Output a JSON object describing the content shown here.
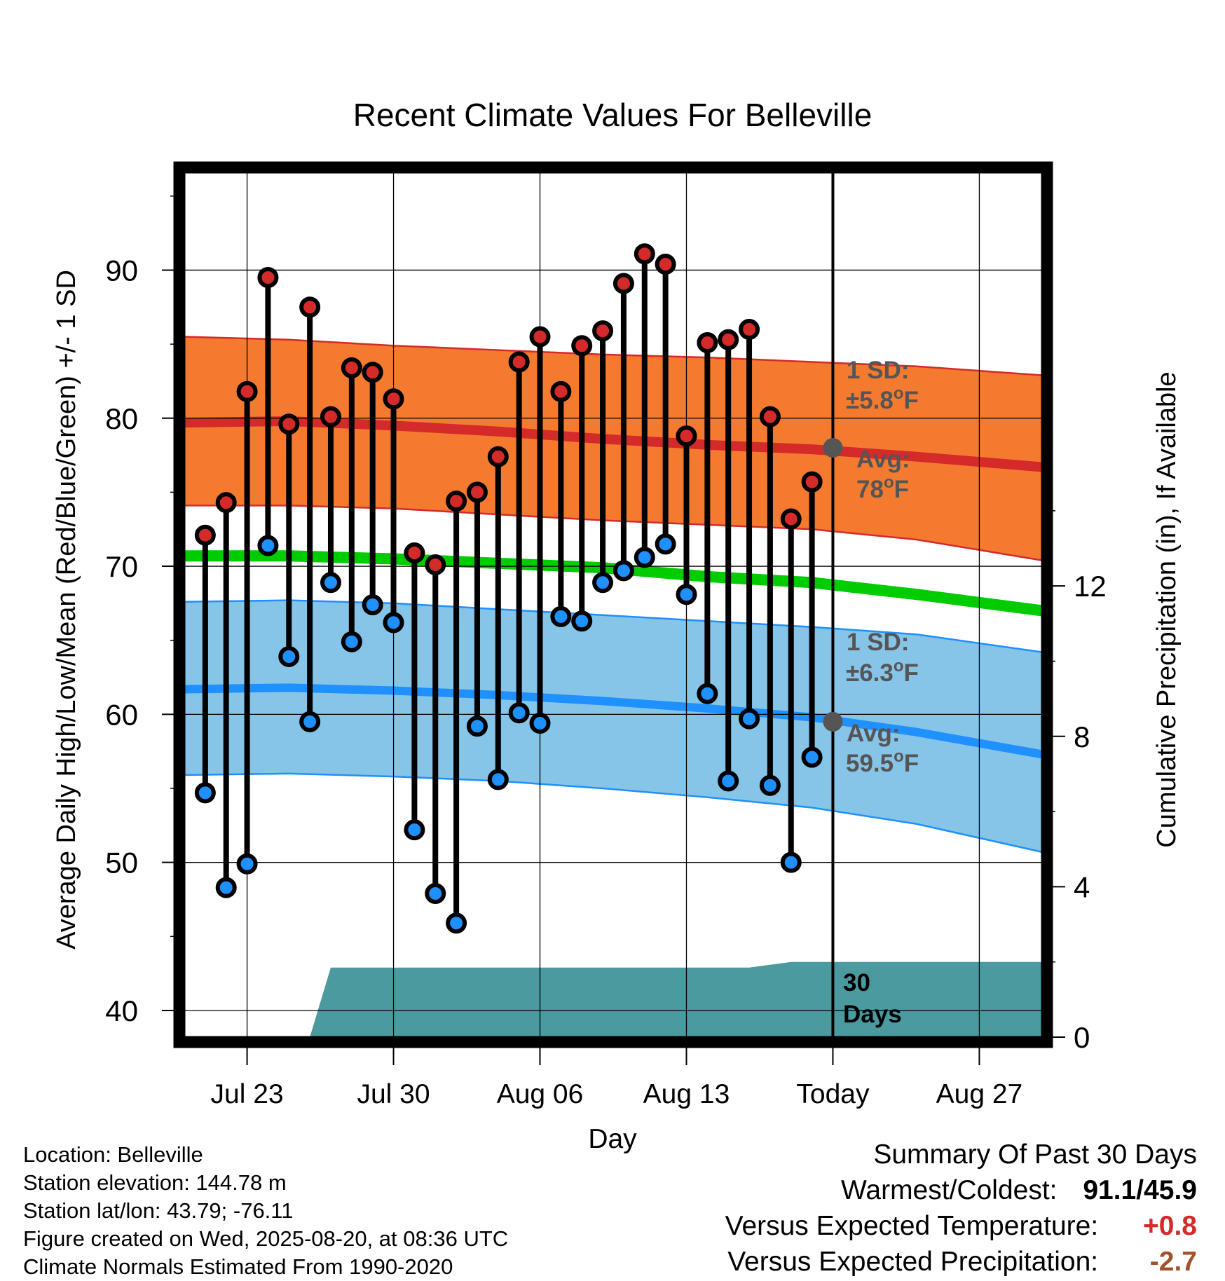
{
  "chart_data": {
    "type": "line",
    "title": "Recent Climate Values For Belleville",
    "xlabel": "Day",
    "ylabel_left": "Average Daily High/Low/Mean (Red/Blue/Green) +/- 1 SD",
    "ylabel_right": "Cumulative Precipitation (in), If Available",
    "x_ticks": [
      "Jul 23",
      "Jul 30",
      "Aug 06",
      "Aug 13",
      "Today",
      "Aug 27"
    ],
    "y_ticks_left": [
      "40",
      "50",
      "60",
      "70",
      "80",
      "90"
    ],
    "y_ticks_right": [
      "0",
      "4",
      "8",
      "12"
    ],
    "ylim_left": [
      38.2,
      96.6
    ],
    "ylim_right": [
      0,
      23
    ],
    "xlim": [
      "2025-07-20",
      "2025-08-30"
    ],
    "grid": true,
    "today_label": "30\nDays",
    "daily": {
      "dates": [
        "2025-07-21",
        "2025-07-22",
        "2025-07-23",
        "2025-07-24",
        "2025-07-25",
        "2025-07-26",
        "2025-07-27",
        "2025-07-28",
        "2025-07-29",
        "2025-07-30",
        "2025-07-31",
        "2025-08-01",
        "2025-08-02",
        "2025-08-03",
        "2025-08-04",
        "2025-08-05",
        "2025-08-06",
        "2025-08-07",
        "2025-08-08",
        "2025-08-09",
        "2025-08-10",
        "2025-08-11",
        "2025-08-12",
        "2025-08-13",
        "2025-08-14",
        "2025-08-15",
        "2025-08-16",
        "2025-08-17",
        "2025-08-18",
        "2025-08-19"
      ],
      "high": [
        72.1,
        74.3,
        81.8,
        89.5,
        79.6,
        87.5,
        80.1,
        83.4,
        83.1,
        81.3,
        70.9,
        70.1,
        74.4,
        75.0,
        77.4,
        83.8,
        85.5,
        81.8,
        84.9,
        85.9,
        89.1,
        91.1,
        90.4,
        78.8,
        85.1,
        85.3,
        86.0,
        80.1,
        73.2,
        75.7
      ],
      "low": [
        54.7,
        48.3,
        49.9,
        71.4,
        63.9,
        59.5,
        68.9,
        64.9,
        67.4,
        66.2,
        52.2,
        47.9,
        45.9,
        59.2,
        55.6,
        60.1,
        59.4,
        66.6,
        66.3,
        68.9,
        69.7,
        70.6,
        71.5,
        68.1,
        61.4,
        55.5,
        59.7,
        55.2,
        50.0,
        57.1
      ]
    },
    "normals": {
      "dates": [
        "2025-07-20",
        "2025-07-25",
        "2025-07-30",
        "2025-08-04",
        "2025-08-09",
        "2025-08-14",
        "2025-08-19",
        "2025-08-24",
        "2025-08-30"
      ],
      "high_mean": [
        79.7,
        79.8,
        79.5,
        79.1,
        78.6,
        78.2,
        77.9,
        77.4,
        76.7
      ],
      "high_sd_upper": [
        85.5,
        85.3,
        84.9,
        84.6,
        84.3,
        84.1,
        83.8,
        83.5,
        82.9
      ],
      "high_sd_lower": [
        74.1,
        74.1,
        73.9,
        73.5,
        73.1,
        72.8,
        72.5,
        71.8,
        70.4
      ],
      "mean": [
        70.7,
        70.7,
        70.5,
        70.2,
        69.9,
        69.3,
        68.9,
        68.1,
        67.0
      ],
      "low_mean": [
        61.7,
        61.8,
        61.6,
        61.3,
        60.9,
        60.4,
        59.8,
        58.8,
        57.3
      ],
      "low_sd_upper": [
        67.6,
        67.7,
        67.5,
        67.1,
        66.7,
        66.3,
        65.9,
        65.4,
        64.2
      ],
      "low_sd_lower": [
        55.9,
        56.0,
        55.8,
        55.5,
        55.0,
        54.4,
        53.7,
        52.6,
        50.7
      ]
    },
    "precip_cumulative": {
      "dates": [
        "2025-07-20",
        "2025-07-26",
        "2025-07-27",
        "2025-08-16",
        "2025-08-18",
        "2025-08-30"
      ],
      "values": [
        0,
        0,
        1.85,
        1.85,
        2.0,
        2.0
      ]
    },
    "annotations": {
      "high_sd": "1 SD:",
      "high_sd_value": "±5.8",
      "high_avg": "Avg:",
      "high_avg_value": "78",
      "low_sd": "1 SD:",
      "low_sd_value": "±6.3",
      "low_avg": "Avg:",
      "low_avg_value": "59.5",
      "unit": "F",
      "degree": "o",
      "today_high_value": 78.0,
      "today_low_value": 59.5
    },
    "colors": {
      "high_band": "#f47a30",
      "high_line": "#d42a2a",
      "mean_line": "#00cc00",
      "low_band": "#86c4e8",
      "low_line": "#1e90ff",
      "precip": "#4a9aa0",
      "high_dot": "#d42a2a",
      "low_dot": "#1e90ff",
      "annotation_text": "#555555"
    }
  },
  "footer": {
    "location": "Location: Belleville",
    "elevation": "Station elevation: 144.78 m",
    "latlon": "Station lat/lon: 43.79; -76.11",
    "created": "Figure created on Wed, 2025-08-20, at 08:36 UTC",
    "normals": "Climate Normals Estimated From 1990-2020"
  },
  "summary": {
    "title": "Summary Of Past 30 Days",
    "warmest_label": "Warmest/Coldest:",
    "warmest_value": "91.1/45.9",
    "temp_label": "Versus Expected Temperature:",
    "temp_value": "+0.8",
    "temp_color": "#d42a2a",
    "precip_label": "Versus Expected Precipitation:",
    "precip_value": "-2.7",
    "precip_color": "#a0522d"
  }
}
